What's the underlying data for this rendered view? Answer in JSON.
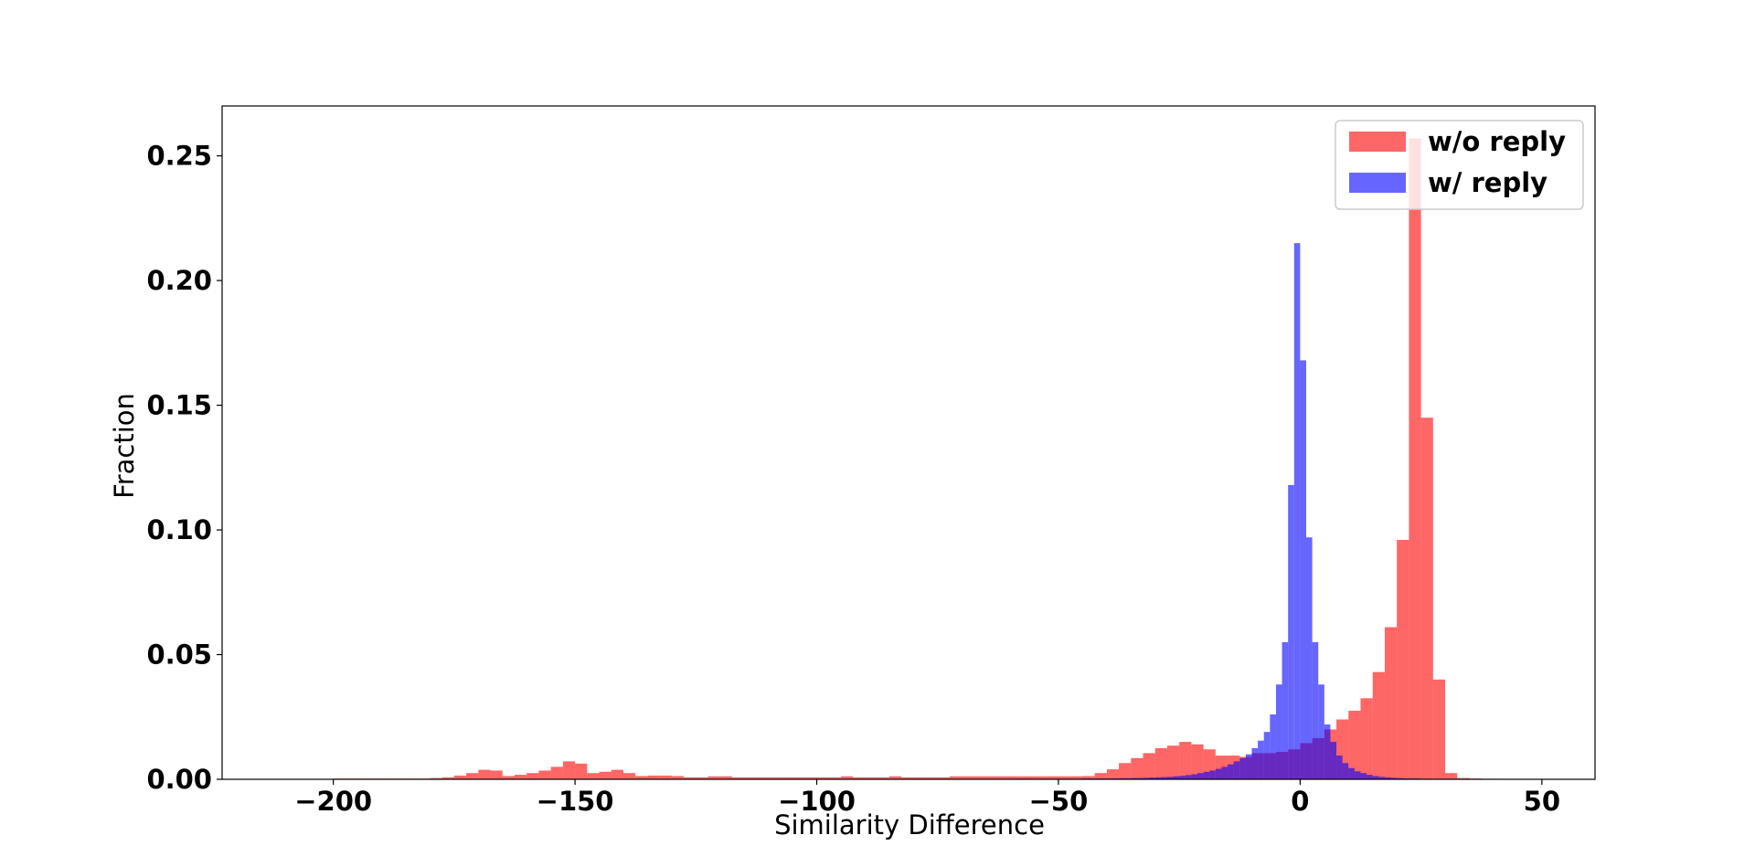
{
  "chart_data": {
    "type": "bar",
    "title": "",
    "xlabel": "Similarity Difference",
    "ylabel": "Fraction",
    "xlim": [
      -223,
      61
    ],
    "ylim": [
      0,
      0.27
    ],
    "x_ticks": [
      -200,
      -150,
      -100,
      -50,
      0,
      50
    ],
    "x_tick_labels": [
      "−200",
      "−150",
      "−100",
      "−50",
      "0",
      "50"
    ],
    "y_ticks": [
      0.0,
      0.05,
      0.1,
      0.15,
      0.2,
      0.25
    ],
    "y_tick_labels": [
      "0.00",
      "0.05",
      "0.10",
      "0.15",
      "0.20",
      "0.25"
    ],
    "grid": false,
    "legend_position": "top-right",
    "series": [
      {
        "name": "w/o reply",
        "color": "#ff0000",
        "opacity": 0.6,
        "bin_start": -200,
        "bin_width": 2.5,
        "values": [
          0.0003,
          0.0003,
          0.0003,
          0.0003,
          0.0003,
          0.0003,
          0.0003,
          0.0003,
          0.0005,
          0.0008,
          0.0015,
          0.0025,
          0.0038,
          0.0035,
          0.0013,
          0.0018,
          0.0025,
          0.0035,
          0.005,
          0.0072,
          0.0063,
          0.0025,
          0.003,
          0.0038,
          0.0025,
          0.0013,
          0.0015,
          0.0015,
          0.0013,
          0.0008,
          0.0008,
          0.0012,
          0.0012,
          0.0008,
          0.0008,
          0.0008,
          0.0008,
          0.0008,
          0.0008,
          0.0008,
          0.0008,
          0.0008,
          0.0012,
          0.0008,
          0.0008,
          0.0008,
          0.0012,
          0.0008,
          0.0008,
          0.0008,
          0.0008,
          0.0012,
          0.0012,
          0.0012,
          0.0012,
          0.0012,
          0.0012,
          0.0012,
          0.0012,
          0.0012,
          0.0012,
          0.0012,
          0.0013,
          0.0025,
          0.004,
          0.0065,
          0.0085,
          0.0105,
          0.0125,
          0.0135,
          0.015,
          0.014,
          0.012,
          0.0095,
          0.0095,
          0.009,
          0.0105,
          0.0105,
          0.011,
          0.012,
          0.0145,
          0.0165,
          0.02,
          0.024,
          0.0275,
          0.0325,
          0.043,
          0.061,
          0.096,
          0.257,
          0.145,
          0.04,
          0.0025,
          0.0005,
          0.0003,
          0.0002,
          0.0002
        ]
      },
      {
        "name": "w/ reply",
        "color": "#0000ff",
        "opacity": 0.6,
        "bin_start": -60,
        "bin_width": 1.25,
        "values": [
          0.0002,
          0.0002,
          0.0002,
          0.0002,
          0.0002,
          0.0002,
          0.0002,
          0.0002,
          0.0002,
          0.0002,
          0.0002,
          0.0002,
          0.0003,
          0.0003,
          0.0003,
          0.0003,
          0.0003,
          0.0003,
          0.0004,
          0.0004,
          0.0005,
          0.0005,
          0.0006,
          0.0007,
          0.0008,
          0.0009,
          0.001,
          0.0012,
          0.0014,
          0.0017,
          0.002,
          0.0025,
          0.003,
          0.0035,
          0.0042,
          0.005,
          0.006,
          0.0072,
          0.0085,
          0.01,
          0.0125,
          0.0155,
          0.019,
          0.026,
          0.038,
          0.055,
          0.118,
          0.215,
          0.168,
          0.097,
          0.055,
          0.038,
          0.022,
          0.015,
          0.0095,
          0.0065,
          0.0045,
          0.0032,
          0.0025,
          0.0018,
          0.0013,
          0.001,
          0.0008,
          0.0006,
          0.0005,
          0.0004,
          0.0003,
          0.0003,
          0.0002,
          0.0002,
          0.0002,
          0.0002,
          0.0002,
          0.0002,
          0.0002,
          0.0002,
          0.0002,
          0.0002,
          0.0002,
          0.0002
        ]
      }
    ]
  }
}
